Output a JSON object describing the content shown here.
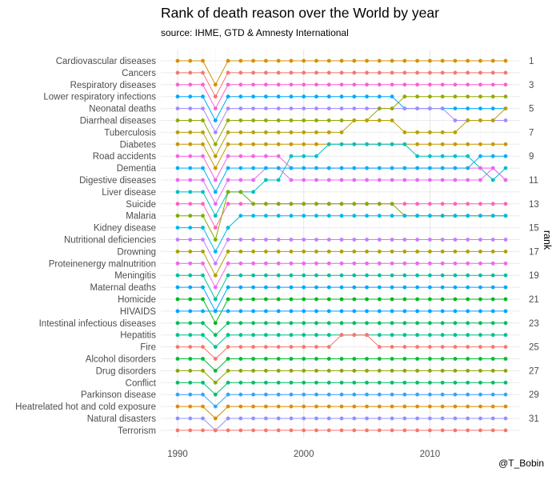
{
  "chart_data": {
    "type": "line",
    "title": "Rank of death reason over the World by year",
    "subtitle": "source: IHME, GTD & Amnesty International",
    "caption": "@T_Bobin",
    "xlabel": "",
    "ylabel": "rank",
    "x_ticks": [
      1990,
      2000,
      2010
    ],
    "xlim": [
      1990,
      2016
    ],
    "y_ticks_right": [
      1,
      3,
      5,
      7,
      9,
      11,
      13,
      15,
      17,
      19,
      21,
      23,
      25,
      27,
      29,
      31
    ],
    "ylim": [
      1,
      32
    ],
    "grid": true,
    "legend": "none",
    "categories": [
      "Cardiovascular diseases",
      "Cancers",
      "Respiratory diseases",
      "Lower respiratory infections",
      "Neonatal deaths",
      "Diarrheal diseases",
      "Tuberculosis",
      "Diabetes",
      "Road accidents",
      "Dementia",
      "Digestive diseases",
      "Liver disease",
      "Suicide",
      "Malaria",
      "Kidney disease",
      "Nutritional deficiencies",
      "Drowning",
      "Proteinenergy malnutrition",
      "Meningitis",
      "Maternal deaths",
      "Homicide",
      "HIVAIDS",
      "Intestinal infectious diseases",
      "Hepatitis",
      "Fire",
      "Alcohol disorders",
      "Drug disorders",
      "Conflict",
      "Parkinson disease",
      "Heatrelated hot and cold exposure",
      "Natural disasters",
      "Terrorism"
    ],
    "series": [
      {
        "name": "Cardiovascular diseases",
        "color": "#d39200",
        "ranks": [
          1,
          1,
          1,
          3,
          1,
          1,
          1,
          1,
          1,
          1,
          1,
          1,
          1,
          1,
          1,
          1,
          1,
          1,
          1,
          1,
          1,
          1,
          1,
          1,
          1,
          1,
          1
        ]
      },
      {
        "name": "Cancers",
        "color": "#f8766d",
        "ranks": [
          2,
          2,
          2,
          4,
          2,
          2,
          2,
          2,
          2,
          2,
          2,
          2,
          2,
          2,
          2,
          2,
          2,
          2,
          2,
          2,
          2,
          2,
          2,
          2,
          2,
          2,
          2
        ]
      },
      {
        "name": "Respiratory diseases",
        "color": "#fd61d1",
        "ranks": [
          3,
          3,
          3,
          5,
          3,
          3,
          3,
          3,
          3,
          3,
          3,
          3,
          3,
          3,
          3,
          3,
          3,
          3,
          3,
          3,
          3,
          3,
          3,
          3,
          3,
          3,
          3
        ]
      },
      {
        "name": "Lower respiratory infections",
        "color": "#00a9ff",
        "ranks": [
          4,
          4,
          4,
          6,
          4,
          4,
          4,
          4,
          4,
          4,
          4,
          4,
          4,
          4,
          4,
          4,
          4,
          4,
          5,
          5,
          5,
          5,
          5,
          5,
          5,
          5,
          5
        ]
      },
      {
        "name": "Neonatal deaths",
        "color": "#a58aff",
        "ranks": [
          5,
          5,
          5,
          7,
          5,
          5,
          5,
          5,
          5,
          5,
          5,
          5,
          5,
          5,
          5,
          5,
          5,
          5,
          5,
          5,
          5,
          5,
          6,
          6,
          6,
          6,
          6
        ]
      },
      {
        "name": "Diarrheal diseases",
        "color": "#93aa00",
        "ranks": [
          6,
          6,
          6,
          8,
          6,
          6,
          6,
          6,
          6,
          6,
          6,
          6,
          6,
          6,
          6,
          6,
          5,
          5,
          4,
          4,
          4,
          4,
          4,
          4,
          4,
          4,
          4
        ]
      },
      {
        "name": "Tuberculosis",
        "color": "#b8a000",
        "ranks": [
          7,
          7,
          7,
          9,
          7,
          7,
          7,
          7,
          7,
          7,
          7,
          7,
          7,
          7,
          6,
          6,
          6,
          6,
          7,
          7,
          7,
          7,
          7,
          6,
          6,
          6,
          5
        ]
      },
      {
        "name": "Diabetes",
        "color": "#c49a00",
        "ranks": [
          8,
          8,
          8,
          10,
          8,
          8,
          8,
          8,
          8,
          8,
          8,
          8,
          8,
          8,
          8,
          8,
          8,
          8,
          8,
          8,
          8,
          8,
          8,
          8,
          8,
          8,
          8
        ]
      },
      {
        "name": "Road accidents",
        "color": "#00bfc4",
        "ranks": [
          12,
          12,
          12,
          14,
          12,
          12,
          12,
          11,
          11,
          9,
          9,
          9,
          8,
          8,
          8,
          8,
          8,
          8,
          8,
          9,
          9,
          9,
          9,
          9,
          10,
          11,
          10
        ]
      },
      {
        "name": "Dementia",
        "color": "#f564e3",
        "ranks": [
          9,
          9,
          9,
          11,
          9,
          9,
          9,
          9,
          9,
          10,
          10,
          10,
          10,
          10,
          10,
          10,
          10,
          10,
          10,
          10,
          10,
          10,
          10,
          10,
          10,
          10,
          11
        ]
      },
      {
        "name": "Digestive diseases",
        "color": "#e76bf3",
        "ranks": [
          11,
          11,
          11,
          13,
          11,
          11,
          11,
          10,
          10,
          11,
          11,
          11,
          11,
          11,
          11,
          11,
          11,
          11,
          11,
          11,
          11,
          11,
          11,
          11,
          11,
          10,
          11
        ]
      },
      {
        "name": "Liver disease",
        "color": "#00b0f6",
        "ranks": [
          10,
          10,
          10,
          12,
          10,
          10,
          10,
          10,
          10,
          10,
          10,
          10,
          10,
          10,
          10,
          10,
          10,
          10,
          10,
          10,
          10,
          10,
          10,
          10,
          9,
          9,
          9
        ]
      },
      {
        "name": "Suicide",
        "color": "#ff62bc",
        "ranks": [
          13,
          13,
          13,
          15,
          13,
          13,
          13,
          13,
          13,
          13,
          13,
          13,
          13,
          13,
          13,
          13,
          13,
          13,
          13,
          13,
          13,
          13,
          13,
          13,
          13,
          13,
          13
        ]
      },
      {
        "name": "Malaria",
        "color": "#7cae00",
        "ranks": [
          14,
          14,
          14,
          16,
          12,
          12,
          13,
          13,
          13,
          13,
          13,
          13,
          13,
          13,
          13,
          13,
          13,
          13,
          14,
          14,
          14,
          14,
          14,
          14,
          14,
          14,
          14
        ]
      },
      {
        "name": "Kidney disease",
        "color": "#00b8e7",
        "ranks": [
          15,
          15,
          15,
          17,
          15,
          14,
          14,
          14,
          14,
          14,
          14,
          14,
          14,
          14,
          14,
          14,
          14,
          14,
          14,
          14,
          14,
          14,
          14,
          14,
          14,
          14,
          14
        ]
      },
      {
        "name": "Nutritional deficiencies",
        "color": "#c77cff",
        "ranks": [
          16,
          16,
          16,
          18,
          16,
          16,
          16,
          16,
          16,
          16,
          16,
          16,
          16,
          16,
          16,
          16,
          16,
          16,
          16,
          16,
          16,
          16,
          16,
          16,
          16,
          16,
          16
        ]
      },
      {
        "name": "Drowning",
        "color": "#aba300",
        "ranks": [
          17,
          17,
          17,
          19,
          17,
          17,
          17,
          17,
          17,
          17,
          17,
          17,
          17,
          17,
          17,
          17,
          17,
          17,
          17,
          17,
          17,
          17,
          17,
          17,
          17,
          17,
          17
        ]
      },
      {
        "name": "Proteinenergy malnutrition",
        "color": "#ed68ed",
        "ranks": [
          18,
          18,
          18,
          20,
          18,
          18,
          18,
          18,
          18,
          18,
          18,
          18,
          18,
          18,
          18,
          18,
          18,
          18,
          18,
          18,
          18,
          18,
          18,
          18,
          18,
          18,
          18
        ]
      },
      {
        "name": "Meningitis",
        "color": "#00c19a",
        "ranks": [
          19,
          19,
          19,
          21,
          19,
          19,
          19,
          19,
          19,
          19,
          19,
          19,
          19,
          19,
          19,
          19,
          19,
          19,
          19,
          19,
          19,
          19,
          19,
          19,
          19,
          19,
          19
        ]
      },
      {
        "name": "Maternal deaths",
        "color": "#00a5ff",
        "ranks": [
          20,
          20,
          20,
          22,
          20,
          20,
          20,
          20,
          20,
          20,
          20,
          20,
          20,
          20,
          20,
          20,
          20,
          20,
          20,
          20,
          20,
          20,
          20,
          20,
          20,
          20,
          20
        ]
      },
      {
        "name": "Homicide",
        "color": "#00b81f",
        "ranks": [
          21,
          21,
          21,
          23,
          21,
          21,
          21,
          21,
          21,
          21,
          21,
          21,
          21,
          21,
          21,
          21,
          21,
          21,
          21,
          21,
          21,
          21,
          21,
          21,
          21,
          21,
          21
        ]
      },
      {
        "name": "HIVAIDS",
        "color": "#00a5ff",
        "ranks": [
          22,
          22,
          22,
          22,
          22,
          22,
          22,
          22,
          22,
          22,
          22,
          22,
          22,
          22,
          22,
          22,
          22,
          22,
          22,
          22,
          22,
          22,
          22,
          22,
          22,
          22,
          22
        ]
      },
      {
        "name": "Intestinal infectious diseases",
        "color": "#00bd5c",
        "ranks": [
          23,
          23,
          23,
          24,
          23,
          23,
          23,
          23,
          23,
          23,
          23,
          23,
          23,
          23,
          23,
          23,
          23,
          23,
          23,
          23,
          23,
          23,
          23,
          23,
          23,
          23,
          23
        ]
      },
      {
        "name": "Hepatitis",
        "color": "#00c08b",
        "ranks": [
          24,
          24,
          24,
          25,
          24,
          24,
          24,
          24,
          24,
          24,
          24,
          24,
          24,
          24,
          24,
          24,
          24,
          24,
          24,
          24,
          24,
          24,
          24,
          24,
          24,
          24,
          24
        ]
      },
      {
        "name": "Fire",
        "color": "#f8766d",
        "ranks": [
          25,
          25,
          25,
          26,
          25,
          25,
          25,
          25,
          25,
          25,
          25,
          25,
          25,
          24,
          24,
          24,
          25,
          25,
          25,
          25,
          25,
          25,
          25,
          25,
          25,
          25,
          25
        ]
      },
      {
        "name": "Alcohol disorders",
        "color": "#00ba38",
        "ranks": [
          26,
          26,
          26,
          27,
          26,
          26,
          26,
          26,
          26,
          26,
          26,
          26,
          26,
          26,
          26,
          26,
          26,
          26,
          26,
          26,
          26,
          26,
          26,
          26,
          26,
          26,
          26
        ]
      },
      {
        "name": "Drug disorders",
        "color": "#8fa500",
        "ranks": [
          27,
          27,
          27,
          28,
          27,
          27,
          27,
          27,
          27,
          27,
          27,
          27,
          27,
          27,
          27,
          27,
          27,
          27,
          27,
          27,
          27,
          27,
          27,
          27,
          27,
          27,
          27
        ]
      },
      {
        "name": "Conflict",
        "color": "#00be67",
        "ranks": [
          28,
          28,
          28,
          29,
          28,
          28,
          28,
          28,
          28,
          28,
          28,
          28,
          28,
          28,
          28,
          28,
          28,
          28,
          28,
          28,
          28,
          28,
          28,
          28,
          28,
          28,
          28
        ]
      },
      {
        "name": "Parkinson disease",
        "color": "#35a2ff",
        "ranks": [
          29,
          29,
          29,
          30,
          29,
          29,
          29,
          29,
          29,
          29,
          29,
          29,
          29,
          29,
          29,
          29,
          29,
          29,
          29,
          29,
          29,
          29,
          29,
          29,
          29,
          29,
          29
        ]
      },
      {
        "name": "Heatrelated hot and cold exposure",
        "color": "#de8c00",
        "ranks": [
          30,
          30,
          30,
          31,
          30,
          30,
          30,
          30,
          30,
          30,
          30,
          30,
          30,
          30,
          30,
          30,
          30,
          30,
          30,
          30,
          30,
          30,
          30,
          30,
          30,
          30,
          30
        ]
      },
      {
        "name": "Natural disasters",
        "color": "#9590ff",
        "ranks": [
          31,
          31,
          31,
          32,
          31,
          31,
          31,
          31,
          31,
          31,
          31,
          31,
          31,
          31,
          31,
          31,
          31,
          31,
          31,
          31,
          31,
          31,
          31,
          31,
          31,
          31,
          31
        ]
      },
      {
        "name": "Terrorism",
        "color": "#f8766d",
        "ranks": [
          32,
          32,
          32,
          32,
          32,
          32,
          32,
          32,
          32,
          32,
          32,
          32,
          32,
          32,
          32,
          32,
          32,
          32,
          32,
          32,
          32,
          32,
          32,
          32,
          32,
          32,
          32
        ]
      }
    ]
  }
}
